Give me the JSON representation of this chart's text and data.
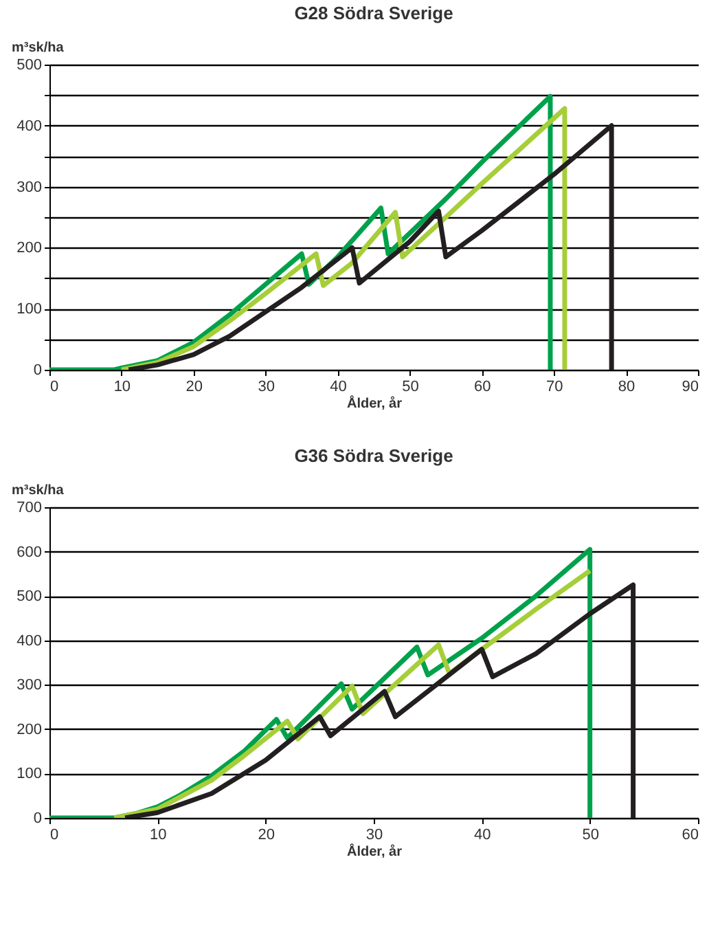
{
  "chart_data": [
    {
      "type": "line",
      "title": "G28 Södra Sverige",
      "xlabel": "Ålder, år",
      "ylabel": "m³sk/ha",
      "xlim": [
        0,
        90
      ],
      "xticks": [
        0,
        10,
        20,
        30,
        40,
        50,
        60,
        70,
        80,
        90
      ],
      "ylim": [
        0,
        500
      ],
      "yticks": [
        0,
        {
          "value": 50,
          "label": null
        },
        100,
        {
          "value": 150,
          "label": null
        },
        200,
        {
          "value": 250,
          "label": null
        },
        300,
        {
          "value": 350,
          "label": null
        },
        400,
        {
          "value": 450,
          "label": null
        },
        500
      ],
      "grid": "y",
      "series": [
        {
          "color": "#00a14b",
          "x": [
            0,
            9,
            10,
            15,
            20,
            25,
            30,
            35,
            36,
            40,
            46,
            47,
            55,
            60,
            69.5,
            69.5
          ],
          "values": [
            0,
            0,
            3,
            15,
            45,
            90,
            140,
            190,
            140,
            185,
            265,
            190,
            280,
            340,
            448,
            0
          ]
        },
        {
          "color": "#a6ce39",
          "x": [
            10,
            15,
            20,
            25,
            30,
            37,
            38,
            42,
            48,
            49,
            55,
            60,
            71.5,
            71.5
          ],
          "values": [
            0,
            12,
            38,
            80,
            125,
            190,
            138,
            175,
            258,
            185,
            250,
            305,
            428,
            0
          ]
        },
        {
          "color": "#231f20",
          "x": [
            11,
            15,
            20,
            25,
            30,
            35,
            42,
            43,
            50,
            54,
            55,
            60,
            70,
            78,
            78
          ],
          "values": [
            0,
            8,
            25,
            55,
            95,
            135,
            200,
            142,
            210,
            260,
            185,
            228,
            320,
            400,
            0
          ]
        }
      ]
    },
    {
      "type": "line",
      "title": "G36 Södra Sverige",
      "xlabel": "Ålder, år",
      "ylabel": "m³sk/ha",
      "xlim": [
        0,
        60
      ],
      "xticks": [
        0,
        10,
        20,
        30,
        40,
        50,
        60
      ],
      "ylim": [
        0,
        700
      ],
      "yticks": [
        0,
        100,
        200,
        300,
        400,
        500,
        600,
        700
      ],
      "grid": "y",
      "series": [
        {
          "color": "#00a14b",
          "x": [
            0,
            6,
            8,
            10,
            12,
            15,
            18,
            21,
            22,
            27,
            28,
            34,
            35,
            40,
            45,
            50,
            50
          ],
          "values": [
            0,
            0,
            10,
            25,
            50,
            95,
            150,
            222,
            180,
            302,
            245,
            385,
            322,
            405,
            500,
            605,
            0
          ]
        },
        {
          "color": "#a6ce39",
          "x": [
            6,
            10,
            15,
            18,
            22,
            23,
            28,
            29,
            36,
            37,
            40,
            45,
            50
          ],
          "values": [
            0,
            20,
            85,
            140,
            218,
            178,
            297,
            235,
            390,
            325,
            380,
            470,
            557
          ]
        },
        {
          "color": "#231f20",
          "x": [
            7,
            10,
            15,
            20,
            25,
            26,
            31,
            32,
            40,
            41,
            45,
            50,
            54,
            54
          ],
          "values": [
            0,
            12,
            55,
            130,
            228,
            185,
            285,
            228,
            380,
            318,
            370,
            460,
            525,
            0
          ]
        }
      ]
    }
  ]
}
